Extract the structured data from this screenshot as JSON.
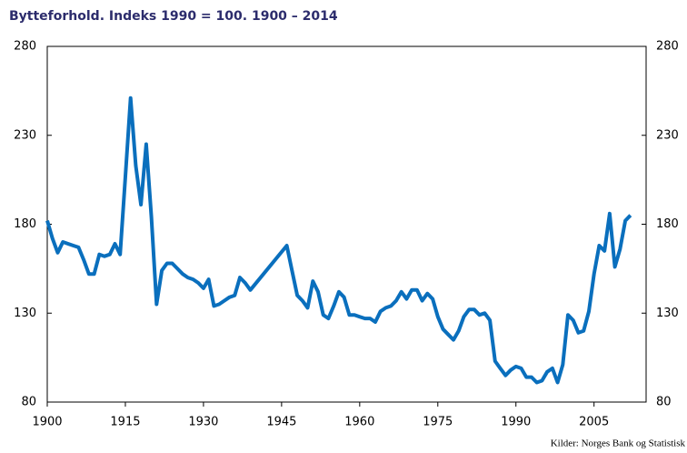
{
  "chart_data": {
    "type": "line",
    "title": "Bytteforhold. Indeks 1990 = 100. 1900 – 2014",
    "source": "Kilder:  Norges Bank og Statistisk",
    "x": [
      1900,
      1901,
      1902,
      1903,
      1904,
      1905,
      1906,
      1907,
      1908,
      1909,
      1910,
      1911,
      1912,
      1913,
      1914,
      1915,
      1916,
      1917,
      1918,
      1919,
      1920,
      1921,
      1922,
      1923,
      1924,
      1925,
      1926,
      1927,
      1928,
      1929,
      1930,
      1931,
      1932,
      1933,
      1934,
      1935,
      1936,
      1937,
      1938,
      1939,
      1946,
      1947,
      1948,
      1949,
      1950,
      1951,
      1952,
      1953,
      1954,
      1955,
      1956,
      1957,
      1958,
      1959,
      1960,
      1961,
      1962,
      1963,
      1964,
      1965,
      1966,
      1967,
      1968,
      1969,
      1970,
      1971,
      1972,
      1973,
      1974,
      1975,
      1976,
      1977,
      1978,
      1979,
      1980,
      1981,
      1982,
      1983,
      1984,
      1985,
      1986,
      1987,
      1988,
      1989,
      1990,
      1991,
      1992,
      1993,
      1994,
      1995,
      1996,
      1997,
      1998,
      1999,
      2000,
      2001,
      2002,
      2003,
      2004,
      2005,
      2006,
      2007,
      2008,
      2009,
      2010,
      2011,
      2012
    ],
    "series": [
      {
        "name": "Bytteforhold",
        "color": "#0a6fbd",
        "values": [
          182,
          172,
          164,
          170,
          169,
          168,
          167,
          160,
          152,
          152,
          163,
          162,
          163,
          169,
          163,
          207,
          251,
          213,
          191,
          225,
          184,
          135,
          154,
          158,
          158,
          155,
          152,
          150,
          149,
          147,
          144,
          149,
          134,
          135,
          137,
          139,
          140,
          150,
          147,
          143,
          168,
          154,
          140,
          137,
          133,
          148,
          142,
          129,
          127,
          134,
          142,
          139,
          129,
          129,
          128,
          127,
          127,
          125,
          131,
          133,
          134,
          137,
          142,
          138,
          143,
          143,
          137,
          141,
          138,
          128,
          121,
          118,
          115,
          120,
          128,
          132,
          132,
          129,
          130,
          126,
          103,
          99,
          95,
          98,
          100,
          99,
          94,
          94,
          91,
          92,
          97,
          99,
          91,
          101,
          129,
          126,
          119,
          120,
          131,
          152,
          168,
          165,
          186,
          156,
          166,
          182,
          185
        ]
      }
    ],
    "xlim": [
      1900,
      2015
    ],
    "xticks": [
      1900,
      1915,
      1930,
      1945,
      1960,
      1975,
      1990,
      2005
    ],
    "ylim": [
      80,
      280
    ],
    "yticks": [
      80,
      130,
      180,
      230,
      280
    ],
    "y2lim": [
      80,
      280
    ],
    "y2ticks": [
      80,
      130,
      180,
      230,
      280
    ],
    "grid": false
  }
}
